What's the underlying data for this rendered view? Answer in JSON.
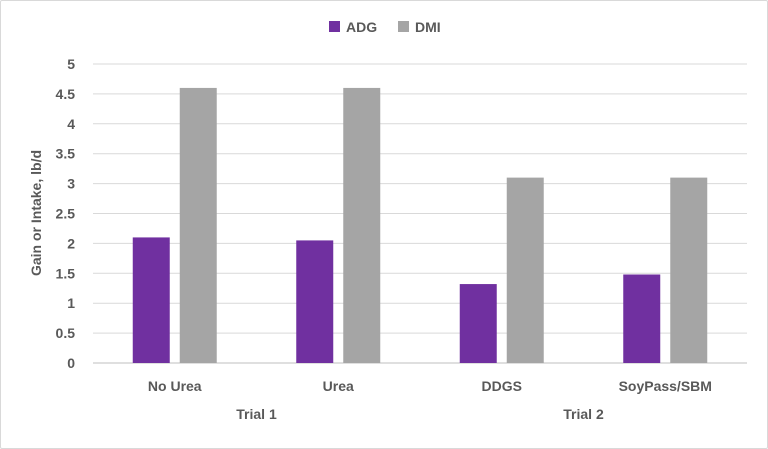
{
  "chart_data": {
    "type": "bar",
    "title": "",
    "xlabel": "",
    "ylabel": "Gain or Intake, lb/d",
    "ylim": [
      0,
      5
    ],
    "yticks": [
      "0",
      "0.5",
      "1",
      "1.5",
      "2",
      "2.5",
      "3",
      "3.5",
      "4",
      "4.5",
      "5"
    ],
    "categories": [
      "No Urea",
      "Urea",
      "DDGS",
      "SoyPass/SBM"
    ],
    "groups": [
      {
        "label": "Trial 1",
        "categories": [
          "No Urea",
          "Urea"
        ]
      },
      {
        "label": "Trial 2",
        "categories": [
          "DDGS",
          "SoyPass/SBM"
        ]
      }
    ],
    "series": [
      {
        "name": "ADG",
        "color": "#7030a0",
        "values": [
          2.1,
          2.05,
          1.32,
          1.48
        ]
      },
      {
        "name": "DMI",
        "color": "#a5a5a5",
        "values": [
          4.6,
          4.6,
          3.1,
          3.1
        ]
      }
    ],
    "grid": true,
    "legend": "top"
  }
}
